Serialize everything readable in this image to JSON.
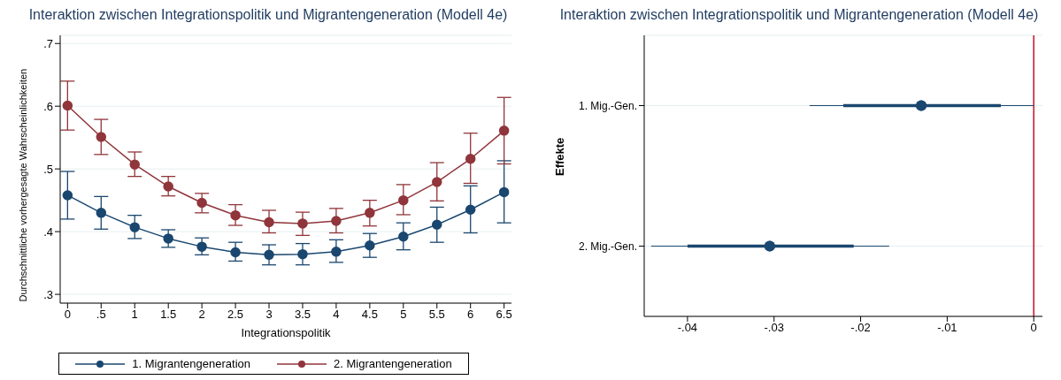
{
  "chart_data": [
    {
      "type": "line",
      "title": "Interaktion zwischen Integrationspolitik und Migrantengeneration (Modell 4e)",
      "xlabel": "Integrationspolitik",
      "ylabel": "Durchschnittliche vorhergesagte Wahrscheinlichkeiten",
      "x": [
        0,
        0.5,
        1,
        1.5,
        2,
        2.5,
        3,
        3.5,
        4,
        4.5,
        5,
        5.5,
        6,
        6.5
      ],
      "series": [
        {
          "name": "1. Migrantengeneration",
          "color": "#1a476f",
          "values": [
            0.458,
            0.43,
            0.407,
            0.389,
            0.376,
            0.367,
            0.363,
            0.364,
            0.368,
            0.378,
            0.392,
            0.411,
            0.435,
            0.463
          ],
          "errors": [
            [
              0.42,
              0.496
            ],
            [
              0.404,
              0.456
            ],
            [
              0.389,
              0.426
            ],
            [
              0.375,
              0.403
            ],
            [
              0.363,
              0.39
            ],
            [
              0.353,
              0.383
            ],
            [
              0.347,
              0.379
            ],
            [
              0.347,
              0.381
            ],
            [
              0.351,
              0.387
            ],
            [
              0.359,
              0.397
            ],
            [
              0.371,
              0.414
            ],
            [
              0.383,
              0.439
            ],
            [
              0.398,
              0.473
            ],
            [
              0.414,
              0.513
            ]
          ]
        },
        {
          "name": "2. Migrantengeneration",
          "color": "#90353b",
          "values": [
            0.601,
            0.551,
            0.507,
            0.472,
            0.446,
            0.426,
            0.415,
            0.413,
            0.417,
            0.43,
            0.45,
            0.479,
            0.516,
            0.561
          ],
          "errors": [
            [
              0.562,
              0.64
            ],
            [
              0.523,
              0.579
            ],
            [
              0.488,
              0.527
            ],
            [
              0.457,
              0.488
            ],
            [
              0.43,
              0.461
            ],
            [
              0.41,
              0.443
            ],
            [
              0.398,
              0.434
            ],
            [
              0.394,
              0.431
            ],
            [
              0.398,
              0.437
            ],
            [
              0.409,
              0.45
            ],
            [
              0.427,
              0.475
            ],
            [
              0.449,
              0.51
            ],
            [
              0.477,
              0.557
            ],
            [
              0.508,
              0.614
            ]
          ]
        }
      ],
      "xlim": [
        -0.11,
        6.61
      ],
      "xticks": [
        0,
        {
          "value": 0.5,
          "label": ".5"
        },
        1,
        1.5,
        2,
        2.5,
        3,
        3.5,
        4,
        4.5,
        5,
        5.5,
        6,
        6.5
      ],
      "ylim": [
        0.286,
        0.713
      ],
      "yticks": [
        {
          "value": 0.3,
          "label": ".3"
        },
        {
          "value": 0.4,
          "label": ".4"
        },
        {
          "value": 0.5,
          "label": ".5"
        },
        {
          "value": 0.6,
          "label": ".6"
        },
        {
          "value": 0.7,
          "label": ".7"
        }
      ],
      "grid": "y",
      "legend": "bottom",
      "marker": "circle",
      "line_style": "solid"
    },
    {
      "type": "scatter",
      "orientation": "horizontal",
      "title": "Interaktion zwischen Integrationspolitik und Migrantengeneration (Modell 4e)",
      "ylabel": "Effekte",
      "categories": [
        "1. Mig.-Gen.",
        "2. Mig.-Gen."
      ],
      "series": [
        {
          "color": "#1a476f",
          "values": [
            -0.013,
            -0.0305
          ],
          "errors": [
            [
              -0.0259,
              0
            ],
            [
              -0.0442,
              -0.0167
            ]
          ]
        },
        {
          "color": "#1a476f",
          "values": [
            -0.013,
            -0.0305
          ],
          "errors": [
            [
              -0.022,
              -0.0038
            ],
            [
              -0.04,
              -0.0208
            ]
          ]
        }
      ],
      "xlim": [
        -0.045,
        0.001
      ],
      "xticks": [
        {
          "value": -0.04,
          "label": "-.04"
        },
        {
          "value": -0.03,
          "label": "-.03"
        },
        {
          "value": -0.02,
          "label": "-.02"
        },
        {
          "value": -0.01,
          "label": "-.01"
        },
        0
      ],
      "ref_lines": [
        {
          "axis": "x",
          "value": 0,
          "color": "#c8102e"
        }
      ],
      "grid": "y"
    }
  ]
}
